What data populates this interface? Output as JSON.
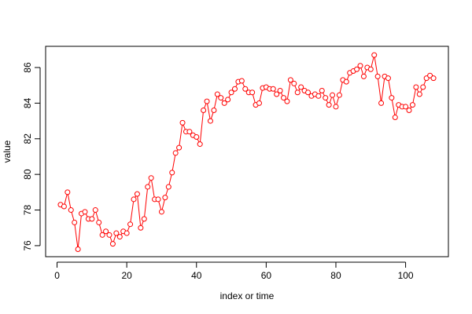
{
  "chart_data": {
    "type": "line",
    "markers": true,
    "color": "#ff0000",
    "xlabel": "index or time",
    "ylabel": "value",
    "x": [
      1,
      2,
      3,
      4,
      5,
      6,
      7,
      8,
      9,
      10,
      11,
      12,
      13,
      14,
      15,
      16,
      17,
      18,
      19,
      20,
      21,
      22,
      23,
      24,
      25,
      26,
      27,
      28,
      29,
      30,
      31,
      32,
      33,
      34,
      35,
      36,
      37,
      38,
      39,
      40,
      41,
      42,
      43,
      44,
      45,
      46,
      47,
      48,
      49,
      50,
      51,
      52,
      53,
      54,
      55,
      56,
      57,
      58,
      59,
      60,
      61,
      62,
      63,
      64,
      65,
      66,
      67,
      68,
      69,
      70,
      71,
      72,
      73,
      74,
      75,
      76,
      77,
      78,
      79,
      80,
      81,
      82,
      83,
      84,
      85,
      86,
      87,
      88,
      89,
      90,
      91,
      92,
      93,
      94,
      95,
      96,
      97,
      98,
      99,
      100,
      101,
      102,
      103,
      104,
      105,
      106,
      107,
      108
    ],
    "values": [
      78.3,
      78.2,
      79.0,
      78.0,
      77.3,
      75.8,
      77.8,
      77.9,
      77.5,
      77.5,
      78.0,
      77.3,
      76.6,
      76.8,
      76.6,
      76.1,
      76.7,
      76.5,
      76.8,
      76.7,
      77.2,
      78.6,
      78.9,
      77.0,
      77.5,
      79.3,
      79.8,
      78.6,
      78.6,
      77.9,
      78.7,
      79.3,
      80.1,
      81.2,
      81.5,
      82.9,
      82.4,
      82.4,
      82.2,
      82.1,
      81.7,
      83.6,
      84.1,
      83.0,
      83.6,
      84.5,
      84.3,
      84.0,
      84.2,
      84.6,
      84.8,
      85.2,
      85.25,
      84.8,
      84.6,
      84.6,
      83.9,
      84.0,
      84.85,
      84.9,
      84.8,
      84.8,
      84.5,
      84.7,
      84.3,
      84.1,
      85.3,
      85.1,
      84.6,
      84.9,
      84.7,
      84.6,
      84.4,
      84.5,
      84.4,
      84.7,
      84.3,
      83.9,
      84.45,
      83.8,
      84.45,
      85.3,
      85.2,
      85.7,
      85.8,
      85.9,
      86.1,
      85.5,
      86.0,
      85.9,
      86.7,
      85.5,
      84.0,
      85.5,
      85.4,
      84.3,
      83.2,
      83.9,
      83.8,
      83.8,
      83.6,
      83.9,
      84.9,
      84.5,
      84.9,
      85.4,
      85.55,
      85.4
    ],
    "xlim": [
      -3.28,
      112.28
    ],
    "xticks": [
      0,
      20,
      40,
      60,
      80,
      100
    ],
    "ylim": [
      75.38,
      87.19
    ],
    "yticks": [
      76,
      78,
      80,
      82,
      84,
      86
    ]
  }
}
